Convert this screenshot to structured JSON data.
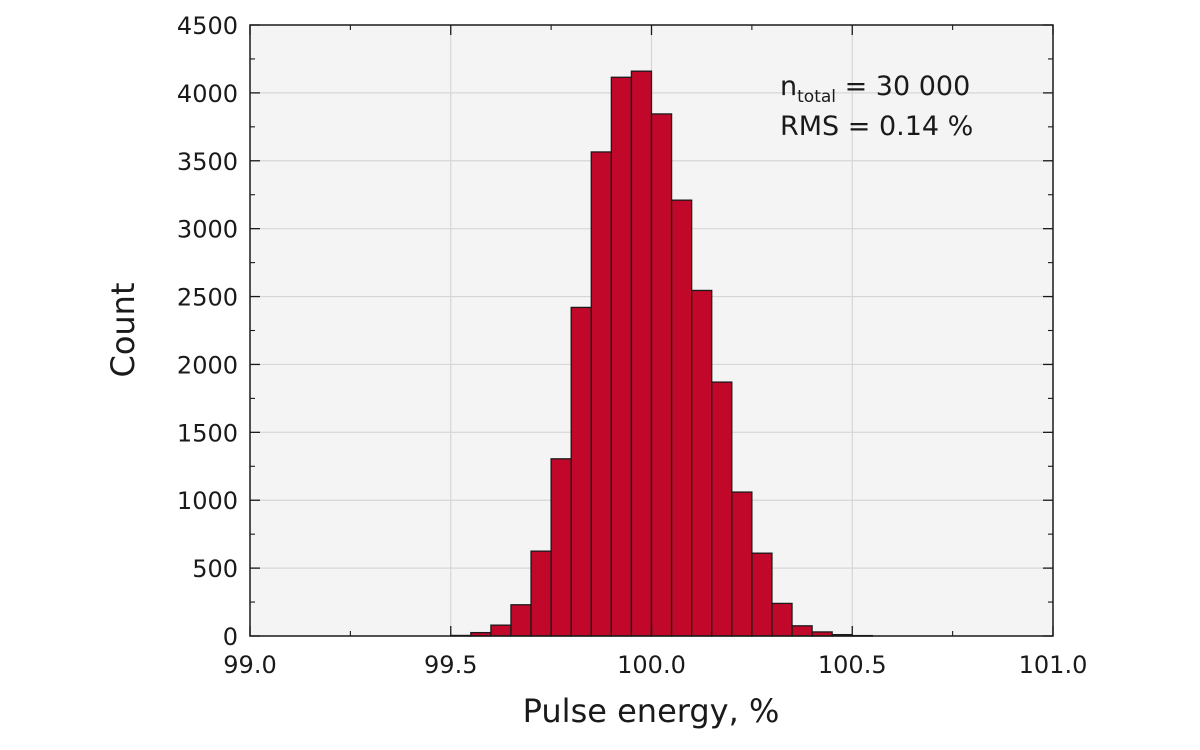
{
  "chart_data": {
    "type": "bar",
    "xlabel": "Pulse energy, %",
    "ylabel": "Count",
    "xlim": [
      99.0,
      101.0
    ],
    "ylim": [
      0,
      4500
    ],
    "xticks": [
      "99.0",
      "99.5",
      "100.0",
      "100.5",
      "101.0"
    ],
    "yticks": [
      "0",
      "500",
      "1000",
      "1500",
      "2000",
      "2500",
      "3000",
      "3500",
      "4000",
      "4500"
    ],
    "grid": true,
    "bin_width": 0.05,
    "bins": [
      {
        "x0": 99.5,
        "value": 4
      },
      {
        "x0": 99.55,
        "value": 25
      },
      {
        "x0": 99.6,
        "value": 80
      },
      {
        "x0": 99.65,
        "value": 230
      },
      {
        "x0": 99.7,
        "value": 625
      },
      {
        "x0": 99.75,
        "value": 1305
      },
      {
        "x0": 99.8,
        "value": 2420
      },
      {
        "x0": 99.85,
        "value": 3565
      },
      {
        "x0": 99.9,
        "value": 4115
      },
      {
        "x0": 99.95,
        "value": 4160
      },
      {
        "x0": 100.0,
        "value": 3845
      },
      {
        "x0": 100.05,
        "value": 3210
      },
      {
        "x0": 100.1,
        "value": 2545
      },
      {
        "x0": 100.15,
        "value": 1870
      },
      {
        "x0": 100.2,
        "value": 1060
      },
      {
        "x0": 100.25,
        "value": 610
      },
      {
        "x0": 100.3,
        "value": 240
      },
      {
        "x0": 100.35,
        "value": 75
      },
      {
        "x0": 100.4,
        "value": 30
      },
      {
        "x0": 100.45,
        "value": 10
      },
      {
        "x0": 100.5,
        "value": 3
      }
    ],
    "annotations": {
      "n_symbol": "n",
      "n_subscript": "total",
      "n_value": " = 30 000",
      "rms": "RMS = 0.14 %"
    },
    "colors": {
      "bar_fill": "#c1082a",
      "bar_edge": "#1a1a1a",
      "plot_bg": "#f4f4f4",
      "grid": "#d6d6d6"
    }
  }
}
